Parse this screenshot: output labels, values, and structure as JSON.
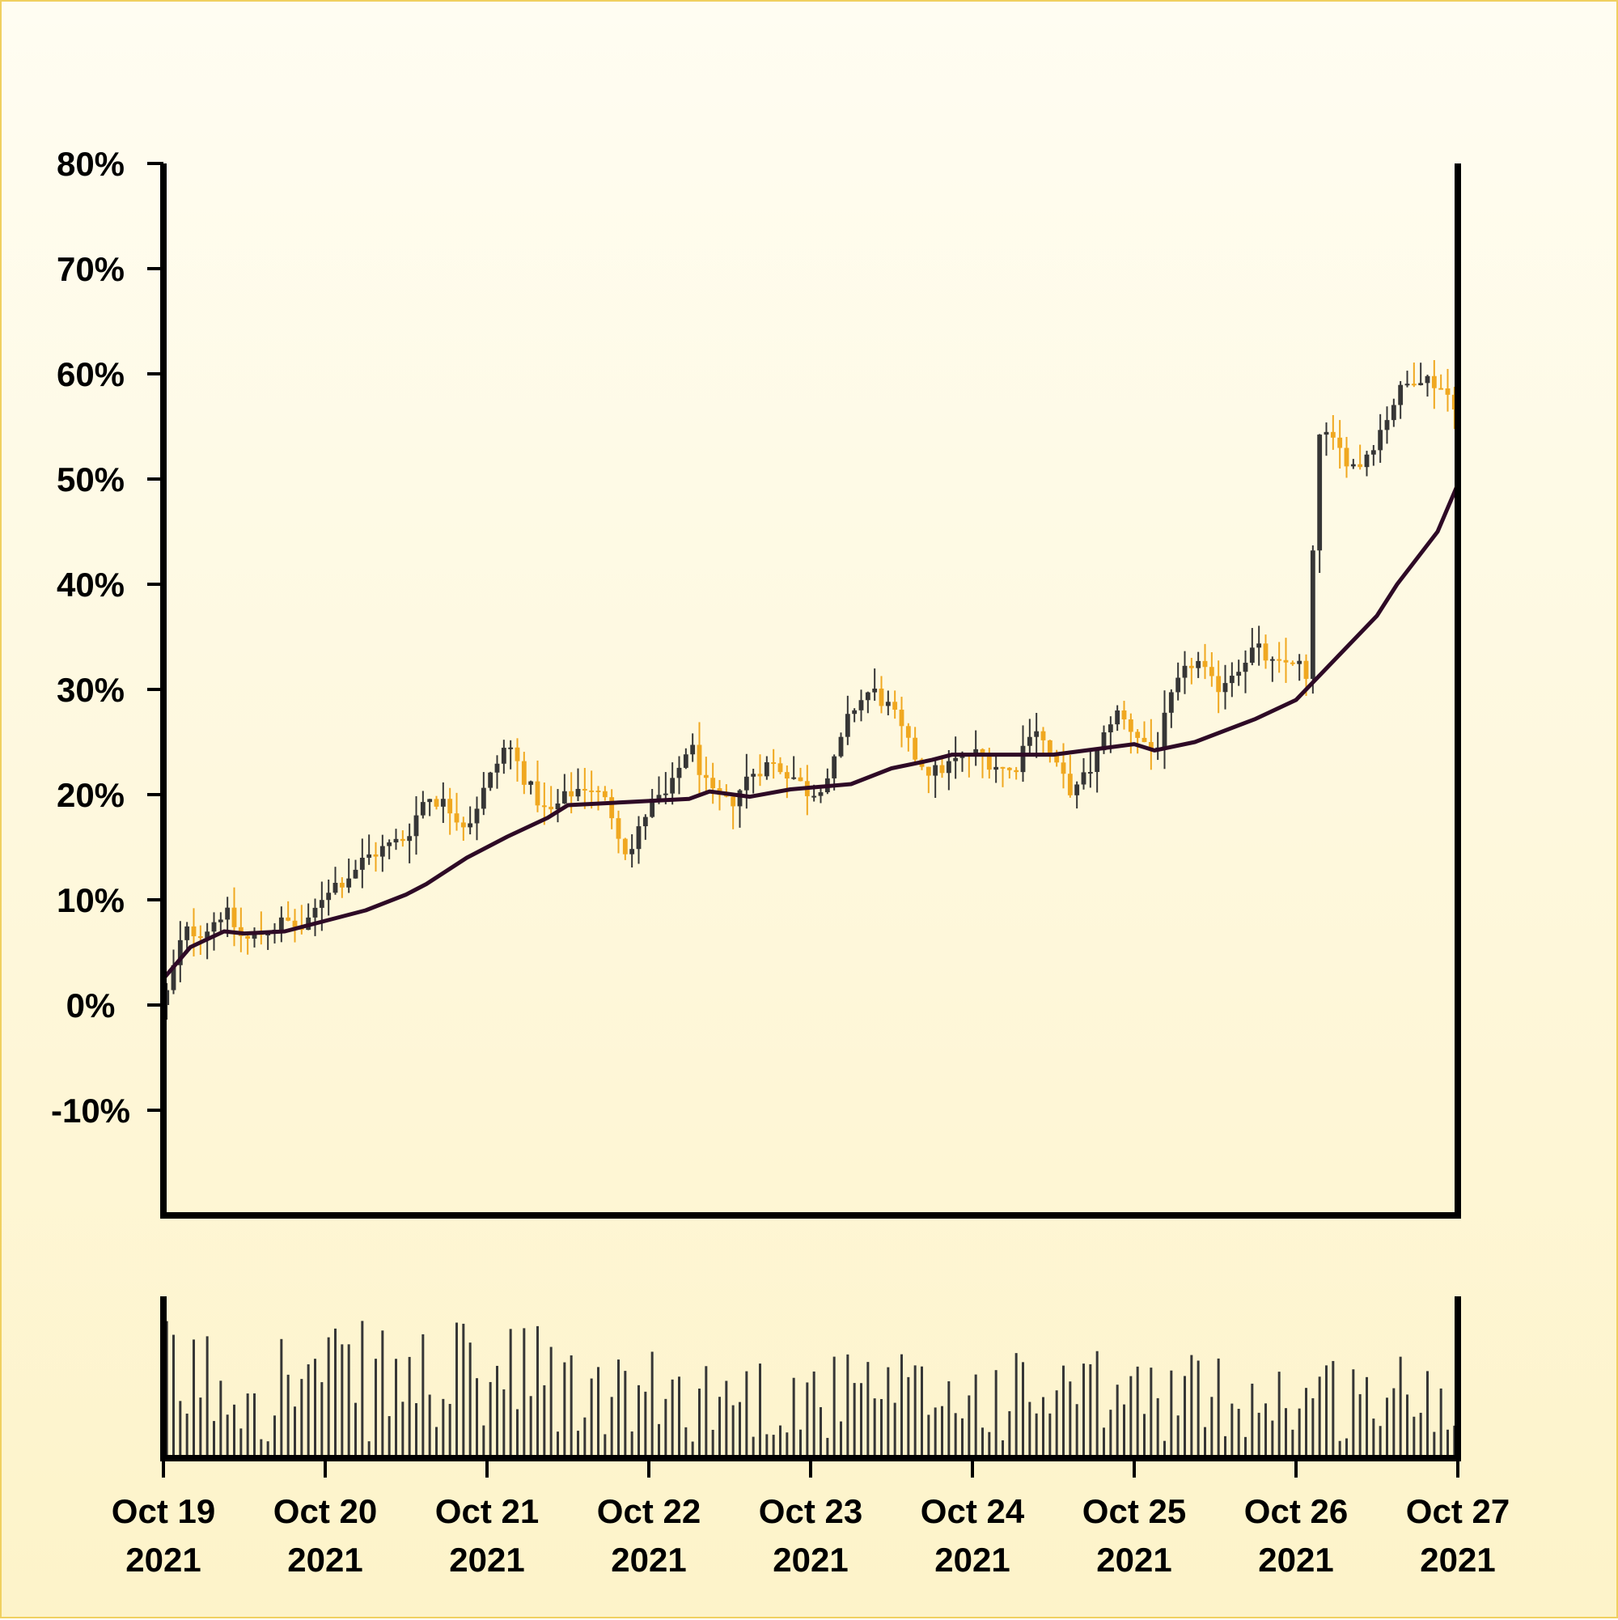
{
  "chart_data": {
    "type": "candlestick",
    "y_unit": "percent",
    "ylim": [
      -20,
      80
    ],
    "y_ticks": [
      {
        "value": 80,
        "label": "80%"
      },
      {
        "value": 70,
        "label": "70%"
      },
      {
        "value": 60,
        "label": "60%"
      },
      {
        "value": 50,
        "label": "50%"
      },
      {
        "value": 40,
        "label": "40%"
      },
      {
        "value": 30,
        "label": "30%"
      },
      {
        "value": 20,
        "label": "20%"
      },
      {
        "value": 10,
        "label": "10%"
      },
      {
        "value": 0,
        "label": "0%"
      },
      {
        "value": -10,
        "label": "-10%"
      }
    ],
    "x_range": [
      "2021-10-19",
      "2021-10-27"
    ],
    "x_ticks": [
      {
        "date": "2021-10-19",
        "line1": "Oct 19",
        "line2": "2021"
      },
      {
        "date": "2021-10-20",
        "line1": "Oct 20",
        "line2": "2021"
      },
      {
        "date": "2021-10-21",
        "line1": "Oct 21",
        "line2": "2021"
      },
      {
        "date": "2021-10-22",
        "line1": "Oct 22",
        "line2": "2021"
      },
      {
        "date": "2021-10-23",
        "line1": "Oct 23",
        "line2": "2021"
      },
      {
        "date": "2021-10-24",
        "line1": "Oct 24",
        "line2": "2021"
      },
      {
        "date": "2021-10-25",
        "line1": "Oct 25",
        "line2": "2021"
      },
      {
        "date": "2021-10-26",
        "line1": "Oct 26",
        "line2": "2021"
      },
      {
        "date": "2021-10-27",
        "line1": "Oct 27",
        "line2": "2021"
      }
    ],
    "close_path": [
      [
        "2021-10-19T00:00",
        0
      ],
      [
        "2021-10-19T03:00",
        7
      ],
      [
        "2021-10-19T06:00",
        7
      ],
      [
        "2021-10-19T09:00",
        9
      ],
      [
        "2021-10-19T12:00",
        6
      ],
      [
        "2021-10-19T15:00",
        7
      ],
      [
        "2021-10-19T18:00",
        8
      ],
      [
        "2021-10-19T21:00",
        7
      ],
      [
        "2021-10-20T00:00",
        11
      ],
      [
        "2021-10-20T03:00",
        12
      ],
      [
        "2021-10-20T06:00",
        14
      ],
      [
        "2021-10-20T09:00",
        15
      ],
      [
        "2021-10-20T12:00",
        16
      ],
      [
        "2021-10-20T15:00",
        20
      ],
      [
        "2021-10-20T18:00",
        19
      ],
      [
        "2021-10-20T21:00",
        17
      ],
      [
        "2021-10-21T00:00",
        21
      ],
      [
        "2021-10-21T03:00",
        25
      ],
      [
        "2021-10-21T06:00",
        21
      ],
      [
        "2021-10-21T09:00",
        18
      ],
      [
        "2021-10-21T12:00",
        20
      ],
      [
        "2021-10-21T15:00",
        21
      ],
      [
        "2021-10-21T18:00",
        19
      ],
      [
        "2021-10-21T21:00",
        14
      ],
      [
        "2021-10-22T00:00",
        19
      ],
      [
        "2021-10-22T03:00",
        20
      ],
      [
        "2021-10-22T06:00",
        25
      ],
      [
        "2021-10-22T09:00",
        20
      ],
      [
        "2021-10-22T12:00",
        19
      ],
      [
        "2021-10-22T15:00",
        22
      ],
      [
        "2021-10-22T18:00",
        23
      ],
      [
        "2021-10-22T21:00",
        22
      ],
      [
        "2021-10-23T00:00",
        20
      ],
      [
        "2021-10-23T03:00",
        22
      ],
      [
        "2021-10-23T06:00",
        28
      ],
      [
        "2021-10-23T09:00",
        30
      ],
      [
        "2021-10-23T12:00",
        28
      ],
      [
        "2021-10-23T15:00",
        24
      ],
      [
        "2021-10-23T18:00",
        22
      ],
      [
        "2021-10-23T21:00",
        23
      ],
      [
        "2021-10-24T00:00",
        24
      ],
      [
        "2021-10-24T03:00",
        23
      ],
      [
        "2021-10-24T06:00",
        22
      ],
      [
        "2021-10-24T09:00",
        27
      ],
      [
        "2021-10-24T12:00",
        23
      ],
      [
        "2021-10-24T15:00",
        20
      ],
      [
        "2021-10-24T18:00",
        23
      ],
      [
        "2021-10-24T21:00",
        28
      ],
      [
        "2021-10-25T00:00",
        26
      ],
      [
        "2021-10-25T03:00",
        24
      ],
      [
        "2021-10-25T06:00",
        30
      ],
      [
        "2021-10-25T09:00",
        33
      ],
      [
        "2021-10-25T12:00",
        30
      ],
      [
        "2021-10-25T15:00",
        32
      ],
      [
        "2021-10-25T18:00",
        34
      ],
      [
        "2021-10-25T21:00",
        32
      ],
      [
        "2021-10-26T00:00",
        33
      ],
      [
        "2021-10-26T02:00",
        30
      ],
      [
        "2021-10-26T03:00",
        55
      ],
      [
        "2021-10-26T06:00",
        53
      ],
      [
        "2021-10-26T09:00",
        51
      ],
      [
        "2021-10-26T12:00",
        54
      ],
      [
        "2021-10-26T15:00",
        58
      ],
      [
        "2021-10-26T18:00",
        60
      ],
      [
        "2021-10-26T21:00",
        59
      ],
      [
        "2021-10-27T00:00",
        57
      ]
    ],
    "moving_average": [
      [
        "2021-10-19T00:00",
        2.5
      ],
      [
        "2021-10-19T04:00",
        5.5
      ],
      [
        "2021-10-19T09:00",
        7
      ],
      [
        "2021-10-19T12:00",
        6.8
      ],
      [
        "2021-10-19T18:00",
        7
      ],
      [
        "2021-10-20T00:00",
        8
      ],
      [
        "2021-10-20T06:00",
        9
      ],
      [
        "2021-10-20T12:00",
        10.5
      ],
      [
        "2021-10-20T15:00",
        11.5
      ],
      [
        "2021-10-20T21:00",
        14
      ],
      [
        "2021-10-21T03:00",
        16
      ],
      [
        "2021-10-21T09:00",
        17.8
      ],
      [
        "2021-10-21T12:00",
        19
      ],
      [
        "2021-10-21T21:00",
        19.3
      ],
      [
        "2021-10-22T06:00",
        19.6
      ],
      [
        "2021-10-22T09:00",
        20.3
      ],
      [
        "2021-10-22T15:00",
        19.8
      ],
      [
        "2021-10-22T21:00",
        20.5
      ],
      [
        "2021-10-23T06:00",
        21
      ],
      [
        "2021-10-23T12:00",
        22.5
      ],
      [
        "2021-10-23T18:00",
        23.3
      ],
      [
        "2021-10-23T21:00",
        23.8
      ],
      [
        "2021-10-24T06:00",
        23.8
      ],
      [
        "2021-10-24T12:00",
        23.8
      ],
      [
        "2021-10-24T18:00",
        24.3
      ],
      [
        "2021-10-25T00:00",
        24.8
      ],
      [
        "2021-10-25T03:00",
        24.2
      ],
      [
        "2021-10-25T09:00",
        25
      ],
      [
        "2021-10-25T18:00",
        27.2
      ],
      [
        "2021-10-26T00:00",
        29
      ],
      [
        "2021-10-26T06:00",
        33
      ],
      [
        "2021-10-26T12:00",
        37
      ],
      [
        "2021-10-26T15:00",
        40
      ],
      [
        "2021-10-26T21:00",
        45
      ],
      [
        "2021-10-27T00:00",
        49.5
      ]
    ],
    "colors": {
      "up": "#363636",
      "down": "#f0a820",
      "moving_average": "#2e0a26",
      "volume": "#363636",
      "axis": "#000000",
      "background_top": "#fffdf2",
      "background_bottom": "#fdf3c9"
    },
    "volume_panel": true,
    "legend": false,
    "grid": false
  }
}
